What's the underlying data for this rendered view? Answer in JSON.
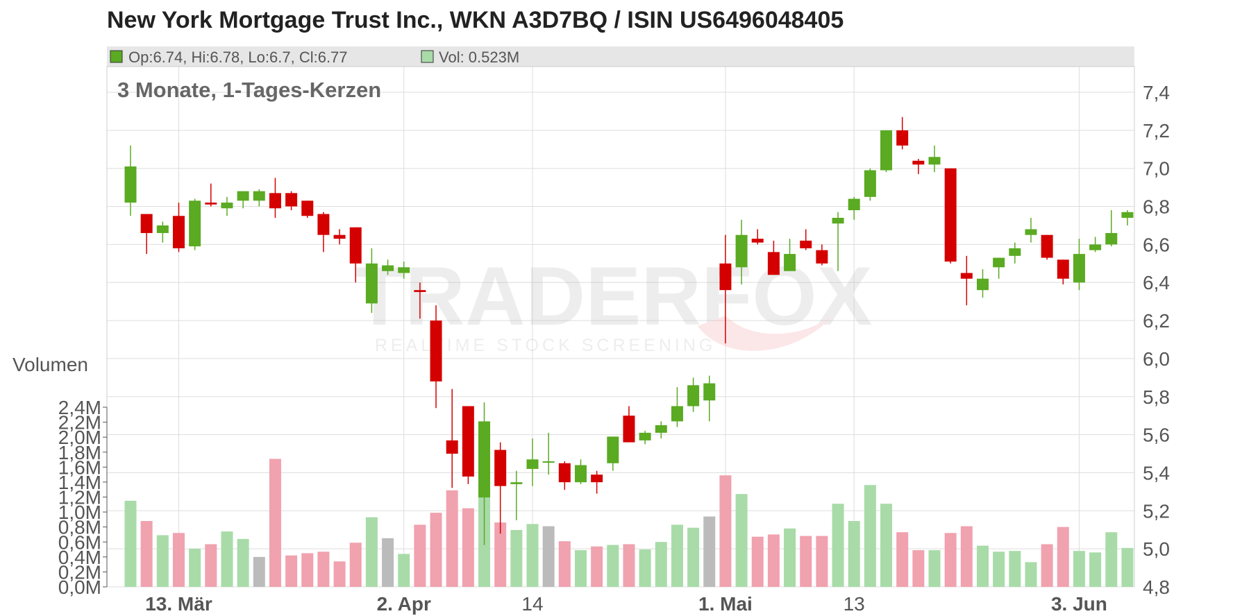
{
  "title": "New York Mortgage Trust Inc., WKN A3D7BQ / ISIN US6496048405",
  "legend": {
    "ohlc_text": "Op:6.74, Hi:6.78, Lo:6.7, Cl:6.77",
    "vol_text": "Vol: 0.523M"
  },
  "watermark": {
    "brand": "TRADERFOX",
    "tagline": "REALTIME STOCK SCREENING"
  },
  "colors": {
    "up": "#5aaa22",
    "down": "#d40000",
    "vol_up": "#a8dba8",
    "vol_down": "#f0a2ae",
    "vol_neutral": "#bbbbbb",
    "grid": "#dddddd",
    "legend_bg": "#e6e6e6"
  },
  "chart_data": {
    "type": "candlestick",
    "subtitle": "3 Monate, 1-Tages-Kerzen",
    "y_ticks": [
      "7,4",
      "7,2",
      "7,0",
      "6,8",
      "6,6",
      "6,4",
      "6,2",
      "6,0",
      "5,8",
      "5,6",
      "5,4",
      "5,2",
      "5,0",
      "4,8"
    ],
    "ylim": [
      4.8,
      7.4
    ],
    "volume_label": "Volumen",
    "volume_ticks": [
      "2,4M",
      "2,2M",
      "2,0M",
      "1,8M",
      "1,6M",
      "1,4M",
      "1,2M",
      "1,0M",
      "0,8M",
      "0,6M",
      "0,4M",
      "0,2M",
      "0,0M"
    ],
    "volume_lim": [
      0,
      2.4
    ],
    "x_labels": [
      {
        "text": "13. Mär",
        "index": 3,
        "bold": true
      },
      {
        "text": "2. Apr",
        "index": 17,
        "bold": true
      },
      {
        "text": "14",
        "index": 25,
        "bold": false
      },
      {
        "text": "1. Mai",
        "index": 37,
        "bold": true
      },
      {
        "text": "13",
        "index": 45,
        "bold": false
      },
      {
        "text": "3. Jun",
        "index": 59,
        "bold": true
      }
    ],
    "grid": true,
    "candles": [
      {
        "o": 6.82,
        "h": 7.12,
        "l": 6.75,
        "c": 7.01,
        "v": 1.15
      },
      {
        "o": 6.76,
        "h": 6.76,
        "l": 6.55,
        "c": 6.66,
        "v": 0.88
      },
      {
        "o": 6.66,
        "h": 6.72,
        "l": 6.61,
        "c": 6.7,
        "v": 0.69
      },
      {
        "o": 6.75,
        "h": 6.82,
        "l": 6.56,
        "c": 6.58,
        "v": 0.72
      },
      {
        "o": 6.59,
        "h": 6.84,
        "l": 6.57,
        "c": 6.83,
        "v": 0.51
      },
      {
        "o": 6.82,
        "h": 6.92,
        "l": 6.8,
        "c": 6.81,
        "v": 0.57
      },
      {
        "o": 6.79,
        "h": 6.85,
        "l": 6.75,
        "c": 6.82,
        "v": 0.74
      },
      {
        "o": 6.83,
        "h": 6.88,
        "l": 6.79,
        "c": 6.88,
        "v": 0.64
      },
      {
        "o": 6.83,
        "h": 6.89,
        "l": 6.8,
        "c": 6.88,
        "v": 0.4
      },
      {
        "o": 6.87,
        "h": 6.95,
        "l": 6.74,
        "c": 6.79,
        "v": 1.71
      },
      {
        "o": 6.87,
        "h": 6.88,
        "l": 6.78,
        "c": 6.8,
        "v": 0.42
      },
      {
        "o": 6.83,
        "h": 6.83,
        "l": 6.74,
        "c": 6.75,
        "v": 0.45
      },
      {
        "o": 6.76,
        "h": 6.77,
        "l": 6.56,
        "c": 6.65,
        "v": 0.47
      },
      {
        "o": 6.65,
        "h": 6.68,
        "l": 6.6,
        "c": 6.63,
        "v": 0.34
      },
      {
        "o": 6.69,
        "h": 6.69,
        "l": 6.4,
        "c": 6.5,
        "v": 0.59
      },
      {
        "o": 6.29,
        "h": 6.58,
        "l": 6.24,
        "c": 6.5,
        "v": 0.93
      },
      {
        "o": 6.46,
        "h": 6.52,
        "l": 6.44,
        "c": 6.49,
        "v": 0.65
      },
      {
        "o": 6.45,
        "h": 6.51,
        "l": 6.42,
        "c": 6.48,
        "v": 0.44
      },
      {
        "o": 6.36,
        "h": 6.4,
        "l": 6.21,
        "c": 6.35,
        "v": 0.83
      },
      {
        "o": 6.2,
        "h": 6.28,
        "l": 5.74,
        "c": 5.88,
        "v": 0.99
      },
      {
        "o": 5.57,
        "h": 5.84,
        "l": 5.32,
        "c": 5.5,
        "v": 1.29
      },
      {
        "o": 5.75,
        "h": 5.75,
        "l": 5.34,
        "c": 5.38,
        "v": 1.05
      },
      {
        "o": 5.27,
        "h": 5.77,
        "l": 5.02,
        "c": 5.67,
        "v": 1.29
      },
      {
        "o": 5.52,
        "h": 5.56,
        "l": 5.08,
        "c": 5.33,
        "v": 0.86
      },
      {
        "o": 5.34,
        "h": 5.41,
        "l": 5.15,
        "c": 5.35,
        "v": 0.76
      },
      {
        "o": 5.42,
        "h": 5.58,
        "l": 5.33,
        "c": 5.47,
        "v": 0.84
      },
      {
        "o": 5.46,
        "h": 5.61,
        "l": 5.39,
        "c": 5.46,
        "v": 0.81
      },
      {
        "o": 5.45,
        "h": 5.46,
        "l": 5.31,
        "c": 5.35,
        "v": 0.61
      },
      {
        "o": 5.35,
        "h": 5.47,
        "l": 5.34,
        "c": 5.44,
        "v": 0.49
      },
      {
        "o": 5.39,
        "h": 5.41,
        "l": 5.29,
        "c": 5.35,
        "v": 0.54
      },
      {
        "o": 5.45,
        "h": 5.58,
        "l": 5.41,
        "c": 5.59,
        "v": 0.56
      },
      {
        "o": 5.7,
        "h": 5.75,
        "l": 5.56,
        "c": 5.56,
        "v": 0.57
      },
      {
        "o": 5.57,
        "h": 5.62,
        "l": 5.55,
        "c": 5.61,
        "v": 0.5
      },
      {
        "o": 5.61,
        "h": 5.67,
        "l": 5.58,
        "c": 5.65,
        "v": 0.6
      },
      {
        "o": 5.67,
        "h": 5.85,
        "l": 5.64,
        "c": 5.75,
        "v": 0.83
      },
      {
        "o": 5.75,
        "h": 5.9,
        "l": 5.72,
        "c": 5.86,
        "v": 0.79
      },
      {
        "o": 5.78,
        "h": 5.91,
        "l": 5.67,
        "c": 5.87,
        "v": 0.94
      },
      {
        "o": 6.5,
        "h": 6.65,
        "l": 6.08,
        "c": 6.36,
        "v": 1.49
      },
      {
        "o": 6.48,
        "h": 6.73,
        "l": 6.39,
        "c": 6.65,
        "v": 1.24
      },
      {
        "o": 6.63,
        "h": 6.68,
        "l": 6.6,
        "c": 6.61,
        "v": 0.67
      },
      {
        "o": 6.56,
        "h": 6.62,
        "l": 6.44,
        "c": 6.44,
        "v": 0.7
      },
      {
        "o": 6.46,
        "h": 6.63,
        "l": 6.46,
        "c": 6.55,
        "v": 0.78
      },
      {
        "o": 6.62,
        "h": 6.68,
        "l": 6.57,
        "c": 6.58,
        "v": 0.68
      },
      {
        "o": 6.57,
        "h": 6.6,
        "l": 6.49,
        "c": 6.5,
        "v": 0.68
      },
      {
        "o": 6.71,
        "h": 6.77,
        "l": 6.46,
        "c": 6.74,
        "v": 1.11
      },
      {
        "o": 6.78,
        "h": 6.85,
        "l": 6.73,
        "c": 6.84,
        "v": 0.88
      },
      {
        "o": 6.85,
        "h": 7.0,
        "l": 6.83,
        "c": 6.99,
        "v": 1.36
      },
      {
        "o": 6.99,
        "h": 7.2,
        "l": 6.98,
        "c": 7.2,
        "v": 1.11
      },
      {
        "o": 7.2,
        "h": 7.27,
        "l": 7.1,
        "c": 7.12,
        "v": 0.73
      },
      {
        "o": 7.04,
        "h": 7.05,
        "l": 6.97,
        "c": 7.02,
        "v": 0.49
      },
      {
        "o": 7.02,
        "h": 7.12,
        "l": 6.98,
        "c": 7.06,
        "v": 0.49
      },
      {
        "o": 7.0,
        "h": 7.0,
        "l": 6.5,
        "c": 6.51,
        "v": 0.72
      },
      {
        "o": 6.45,
        "h": 6.54,
        "l": 6.28,
        "c": 6.42,
        "v": 0.81
      },
      {
        "o": 6.36,
        "h": 6.47,
        "l": 6.32,
        "c": 6.42,
        "v": 0.55
      },
      {
        "o": 6.48,
        "h": 6.53,
        "l": 6.42,
        "c": 6.53,
        "v": 0.47
      },
      {
        "o": 6.54,
        "h": 6.61,
        "l": 6.5,
        "c": 6.58,
        "v": 0.48
      },
      {
        "o": 6.65,
        "h": 6.74,
        "l": 6.61,
        "c": 6.68,
        "v": 0.33
      },
      {
        "o": 6.65,
        "h": 6.65,
        "l": 6.52,
        "c": 6.53,
        "v": 0.57
      },
      {
        "o": 6.52,
        "h": 6.52,
        "l": 6.39,
        "c": 6.42,
        "v": 0.8
      },
      {
        "o": 6.4,
        "h": 6.63,
        "l": 6.36,
        "c": 6.55,
        "v": 0.48
      },
      {
        "o": 6.57,
        "h": 6.64,
        "l": 6.56,
        "c": 6.6,
        "v": 0.46
      },
      {
        "o": 6.6,
        "h": 6.78,
        "l": 6.59,
        "c": 6.66,
        "v": 0.73
      },
      {
        "o": 6.74,
        "h": 6.78,
        "l": 6.7,
        "c": 6.77,
        "v": 0.52
      }
    ]
  }
}
